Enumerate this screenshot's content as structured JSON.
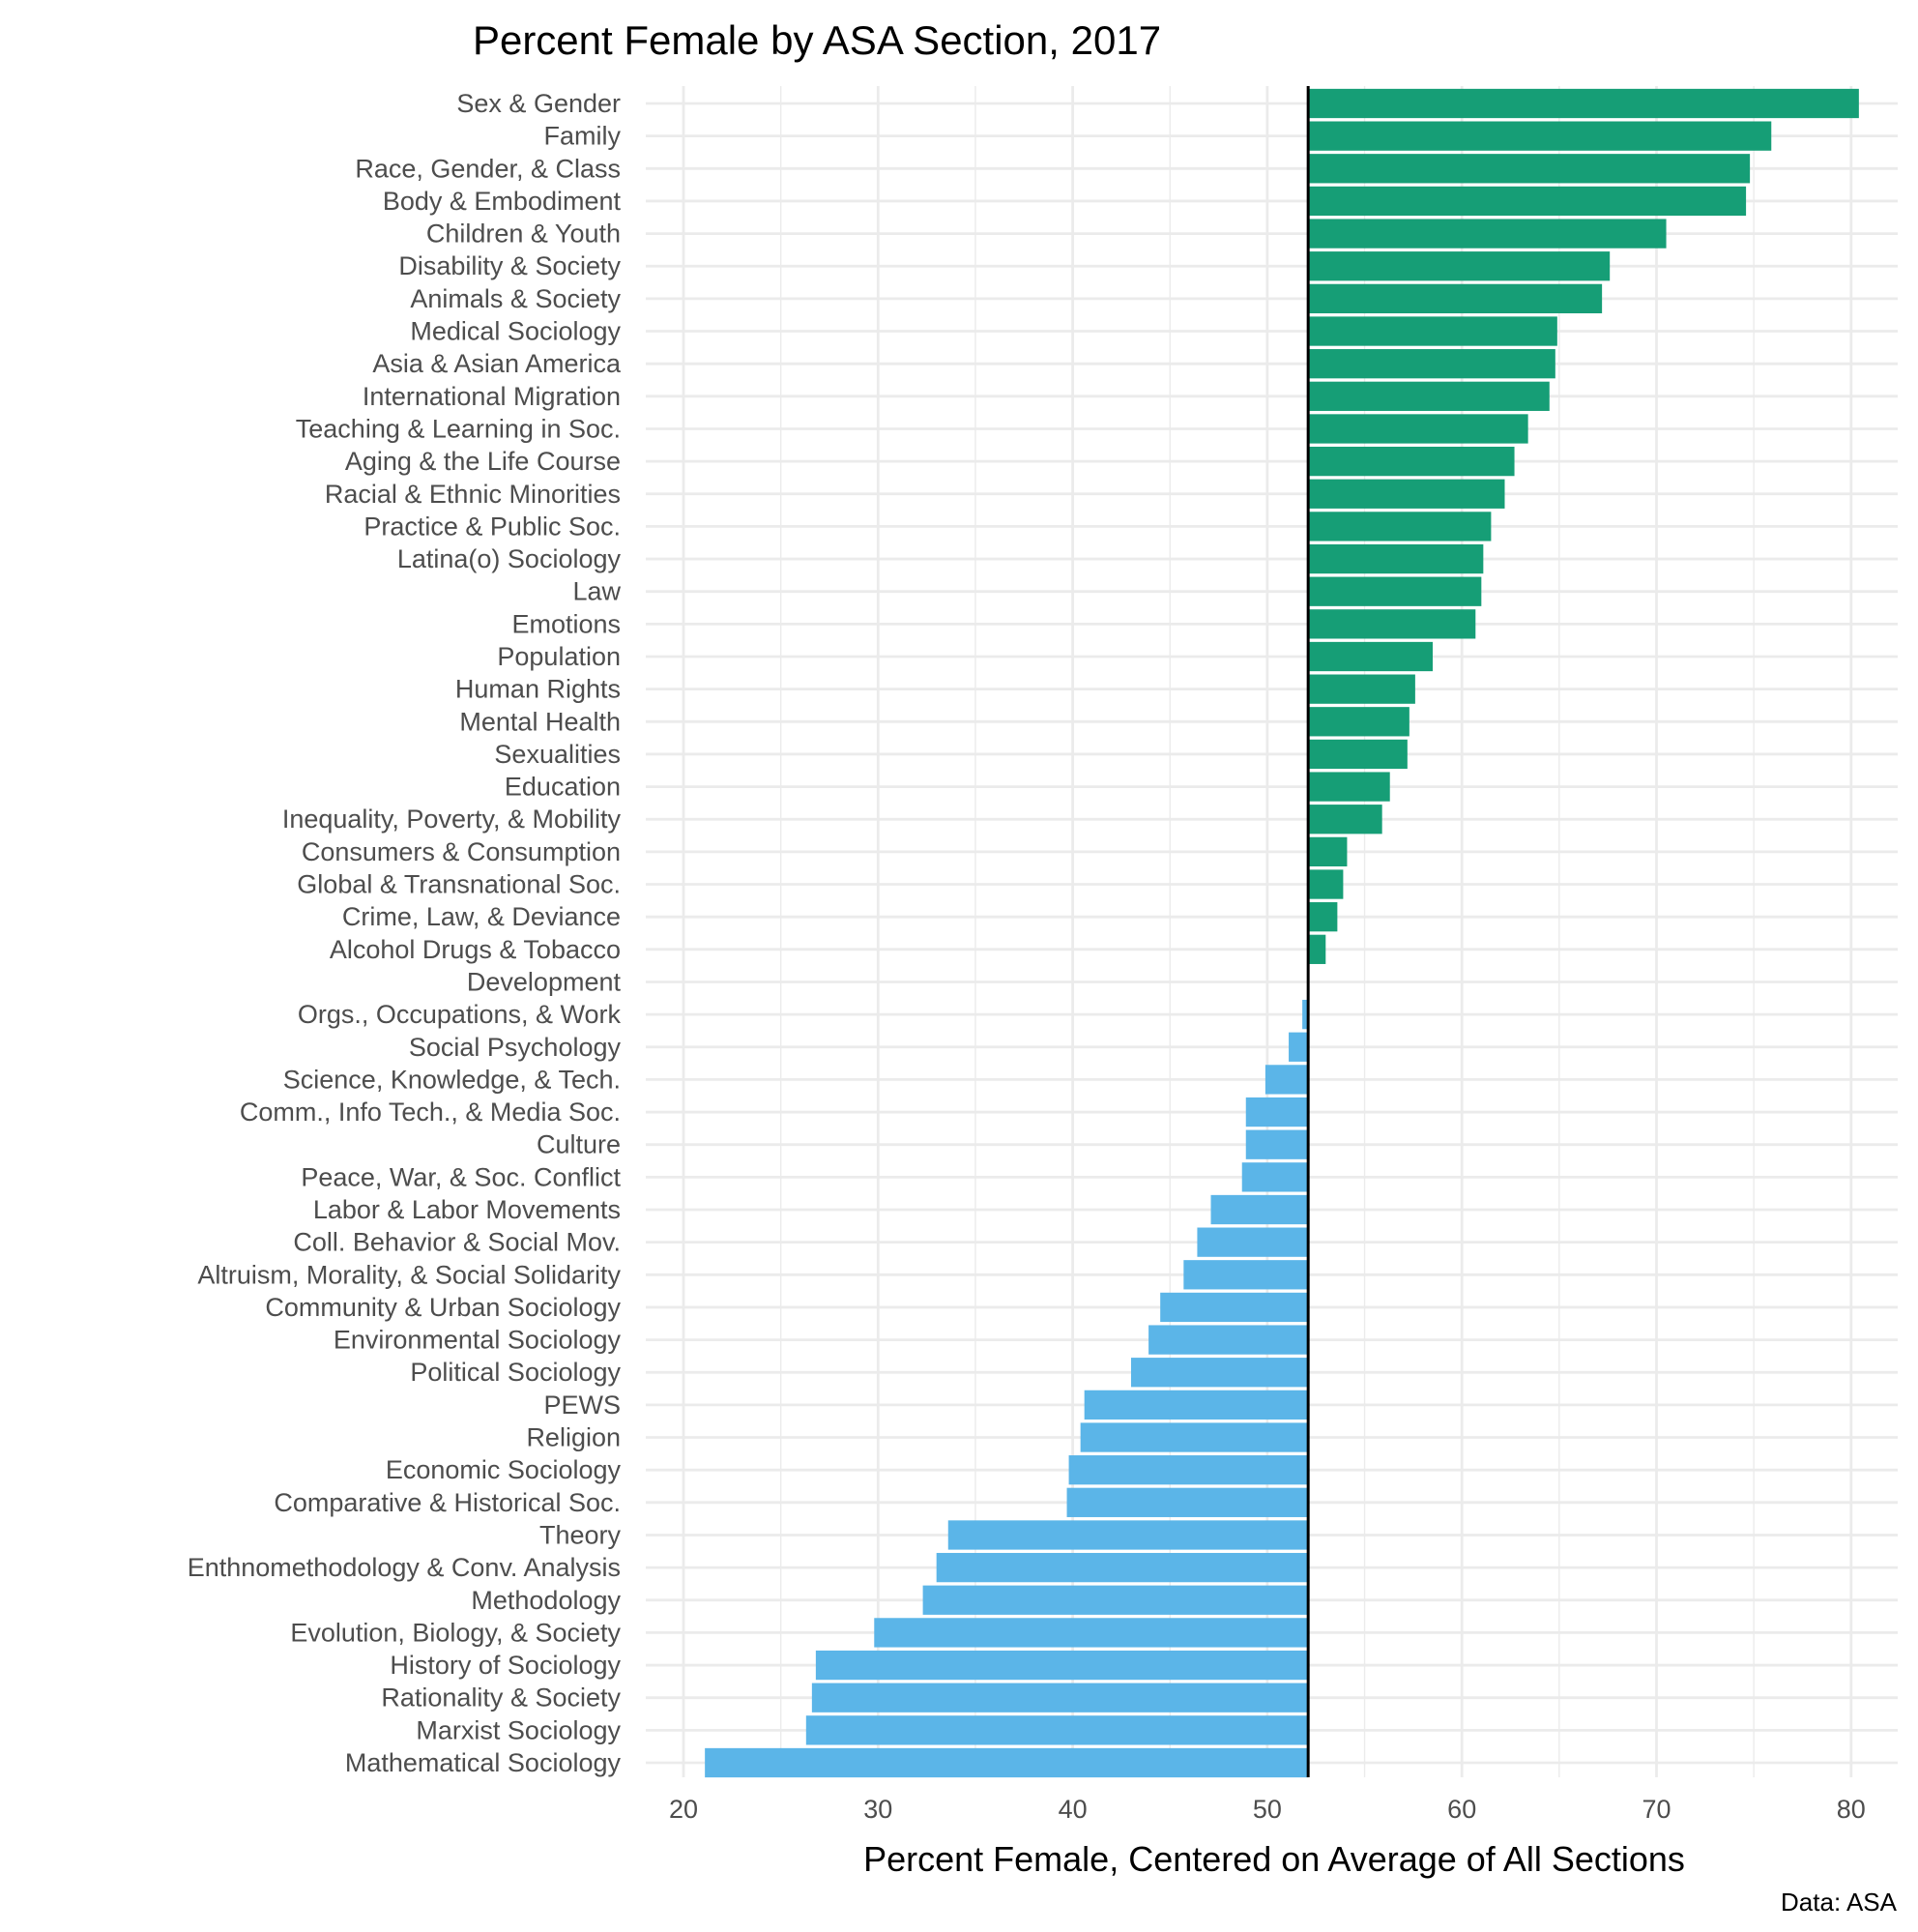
{
  "chart_data": {
    "type": "bar",
    "orientation": "horizontal",
    "title": "Percent Female by ASA Section, 2017",
    "xlabel": "Percent Female, Centered on Average of All Sections",
    "ylabel": "",
    "caption": "Data: ASA",
    "xlim": [
      18,
      83
    ],
    "xticks": [
      20,
      30,
      40,
      50,
      60,
      70,
      80
    ],
    "center_line": 52.1,
    "grid": true,
    "colors": {
      "above": "#169E76",
      "below": "#5BB5E8",
      "center_line": "#000000",
      "grid": "#EBEBEB"
    },
    "categories": [
      "Sex & Gender",
      "Family",
      "Race, Gender, & Class",
      "Body & Embodiment",
      "Children & Youth",
      "Disability & Society",
      "Animals & Society",
      "Medical Sociology",
      "Asia & Asian America",
      "International Migration",
      "Teaching & Learning in Soc.",
      "Aging & the Life Course",
      "Racial & Ethnic Minorities",
      "Practice & Public Soc.",
      "Latina(o) Sociology",
      "Law",
      "Emotions",
      "Population",
      "Human Rights",
      "Mental Health",
      "Sexualities",
      "Education",
      "Inequality, Poverty, & Mobility",
      "Consumers & Consumption",
      "Global & Transnational Soc.",
      "Crime, Law, & Deviance",
      "Alcohol Drugs & Tobacco",
      "Development",
      "Orgs., Occupations, & Work",
      "Social Psychology",
      "Science, Knowledge, & Tech.",
      "Comm., Info Tech., & Media Soc.",
      "Culture",
      "Peace, War, & Soc. Conflict",
      "Labor & Labor Movements",
      "Coll. Behavior & Social Mov.",
      "Altruism, Morality, & Social Solidarity",
      "Community & Urban Sociology",
      "Environmental Sociology",
      "Political Sociology",
      "PEWS",
      "Religion",
      "Economic Sociology",
      "Comparative & Historical Soc.",
      "Theory",
      "Enthnomethodology & Conv. Analysis",
      "Methodology",
      "Evolution, Biology, & Society",
      "History of Sociology",
      "Rationality & Society",
      "Marxist Sociology",
      "Mathematical Sociology"
    ],
    "values": [
      80.4,
      75.9,
      74.8,
      74.6,
      70.5,
      67.6,
      67.2,
      64.9,
      64.8,
      64.5,
      63.4,
      62.7,
      62.2,
      61.5,
      61.1,
      61.0,
      60.7,
      58.5,
      57.6,
      57.3,
      57.2,
      56.3,
      55.9,
      54.1,
      53.9,
      53.6,
      53.0,
      52.1,
      51.8,
      51.1,
      49.9,
      48.9,
      48.9,
      48.7,
      47.1,
      46.4,
      45.7,
      44.5,
      43.9,
      43.0,
      40.6,
      40.4,
      39.8,
      39.7,
      33.6,
      33.0,
      32.3,
      29.8,
      26.8,
      26.6,
      26.3,
      21.1
    ]
  }
}
